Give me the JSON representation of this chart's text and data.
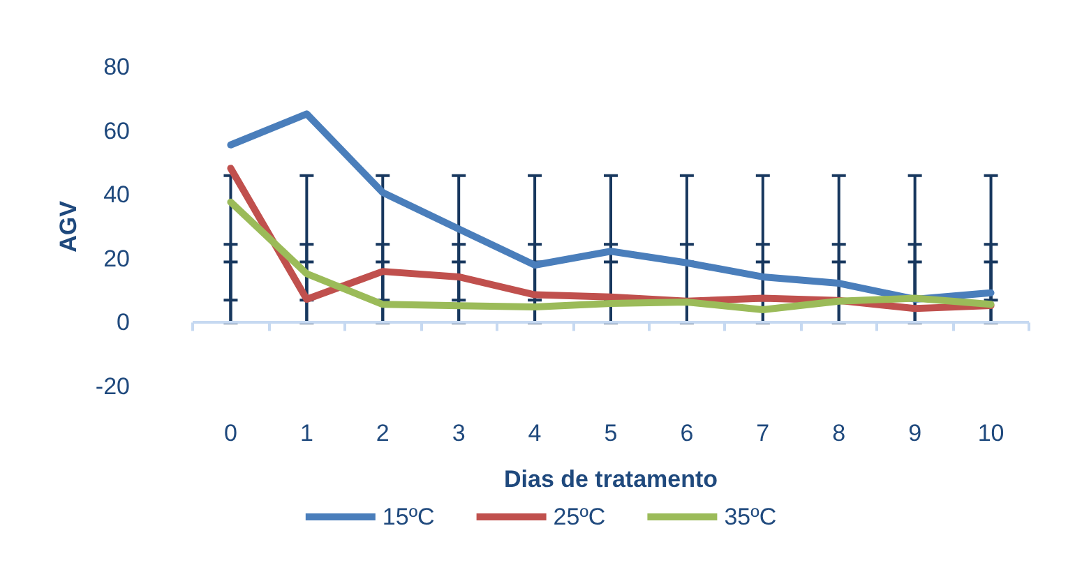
{
  "chart_data": {
    "type": "line",
    "xlabel": "Dias de tratamento",
    "ylabel": "AGV",
    "categories": [
      "0",
      "1",
      "2",
      "3",
      "4",
      "5",
      "6",
      "7",
      "8",
      "9",
      "10"
    ],
    "series": [
      {
        "name": "15ºC",
        "color": "#4a7ebb",
        "values": [
          55.6,
          65.3,
          40.7,
          29.3,
          18,
          22.3,
          18.7,
          14.3,
          12.3,
          7.3,
          9.3
        ],
        "errors": [
          [
            7,
            46
          ],
          [
            7,
            46
          ],
          [
            7,
            46
          ],
          [
            7,
            46
          ],
          [
            7,
            46
          ],
          [
            7,
            46
          ],
          [
            7,
            46
          ],
          [
            7,
            46
          ],
          [
            7,
            46
          ],
          [
            7,
            46
          ],
          [
            7,
            46
          ]
        ]
      },
      {
        "name": "25ºC",
        "color": "#c0504d",
        "values": [
          48.3,
          7.3,
          16,
          14.3,
          8.7,
          8,
          6.7,
          7.6,
          6.9,
          4.4,
          5.3
        ],
        "errors": [
          [
            0,
            24.5
          ],
          [
            0,
            24.5
          ],
          [
            0,
            24.5
          ],
          [
            0,
            24.5
          ],
          [
            0,
            24.5
          ],
          [
            0,
            24.5
          ],
          [
            0,
            24.5
          ],
          [
            0,
            24.5
          ],
          [
            0,
            24.5
          ],
          [
            0,
            24.5
          ],
          [
            0,
            24.5
          ]
        ]
      },
      {
        "name": "35ºC",
        "color": "#9bbb59",
        "values": [
          37.7,
          15.3,
          5.7,
          5.3,
          4.9,
          6,
          6.4,
          4,
          6.7,
          7.6,
          5.7
        ],
        "errors": [
          [
            0,
            19
          ],
          [
            0,
            19
          ],
          [
            0,
            19
          ],
          [
            0,
            19
          ],
          [
            0,
            19
          ],
          [
            0,
            19
          ],
          [
            0,
            19
          ],
          [
            0,
            19
          ],
          [
            0,
            19
          ],
          [
            0,
            19
          ],
          [
            0,
            19
          ]
        ]
      }
    ],
    "ref_lines": [
      {
        "axis": "y",
        "value": 0,
        "color": "#c6d9f1"
      }
    ],
    "ylim": [
      -20,
      80
    ],
    "yticks": [
      -20,
      0,
      20,
      40,
      60,
      80
    ],
    "grid": false,
    "legend": "bottom",
    "marker": "none",
    "line_style": "solid"
  }
}
